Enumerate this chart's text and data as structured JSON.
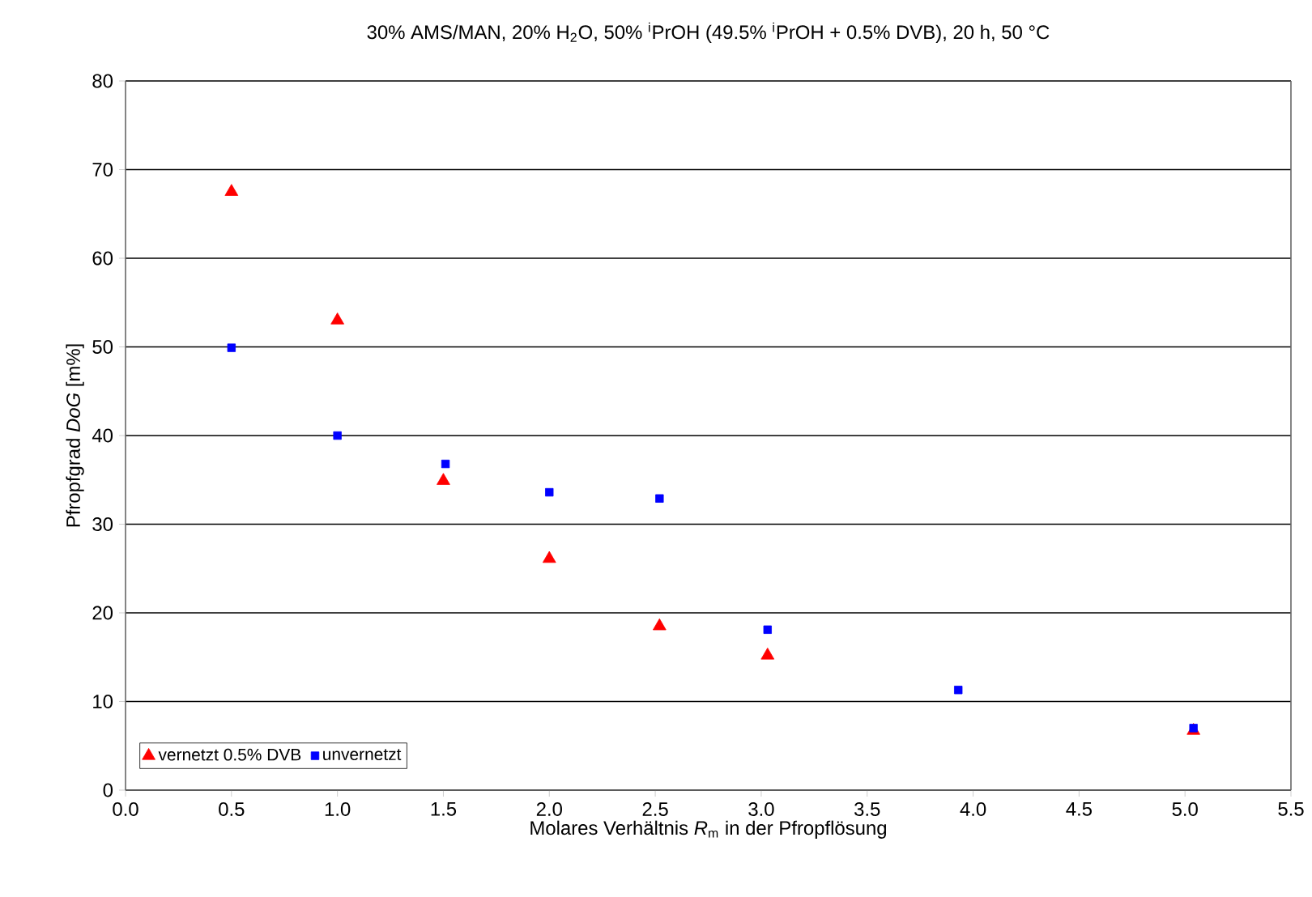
{
  "chart_data": {
    "type": "scatter",
    "title": "30% AMS/MAN, 20% H$_{2}$O, 50% $^{i}$PrOH (49.5% $^{i}$PrOH + 0.5% DVB), 20 h, 50 °C",
    "xlabel": "Molares Verhältnis *R*$_{m}$ in der Pfropflösung",
    "ylabel": "Pfropfgrad *DoG* [m%]",
    "xlim": [
      0,
      5.5
    ],
    "ylim": [
      0,
      80
    ],
    "xticks": [
      {
        "value": 0,
        "label": "0.0"
      },
      {
        "value": 0.5,
        "label": "0.5"
      },
      {
        "value": 1,
        "label": "1.0"
      },
      {
        "value": 1.5,
        "label": "1.5"
      },
      {
        "value": 2,
        "label": "2.0"
      },
      {
        "value": 2.5,
        "label": "2.5"
      },
      {
        "value": 3,
        "label": "3.0"
      },
      {
        "value": 3.5,
        "label": "3.5"
      },
      {
        "value": 4,
        "label": "4.0"
      },
      {
        "value": 4.5,
        "label": "4.5"
      },
      {
        "value": 5,
        "label": "5.0"
      },
      {
        "value": 5.5,
        "label": "5.5"
      }
    ],
    "yticks": [
      0,
      10,
      20,
      30,
      40,
      50,
      60,
      70,
      80
    ],
    "grid": "y",
    "legend": "bottom left",
    "series": [
      {
        "name": "vernetzt 0.5% DVB",
        "color": "#ff0000",
        "marker": "triangle",
        "x": [
          0.5,
          1.0,
          1.5,
          2.0,
          2.52,
          3.03,
          5.04
        ],
        "values": [
          67.5,
          53.0,
          34.9,
          26.1,
          18.5,
          15.2,
          6.7
        ]
      },
      {
        "name": "unvernetzt",
        "color": "#0000ff",
        "marker": "square",
        "x": [
          0.5,
          1.0,
          1.51,
          2.0,
          2.52,
          3.03,
          3.93,
          5.04
        ],
        "values": [
          49.9,
          40.0,
          36.8,
          33.6,
          32.9,
          18.1,
          11.3,
          7.0
        ]
      }
    ]
  }
}
